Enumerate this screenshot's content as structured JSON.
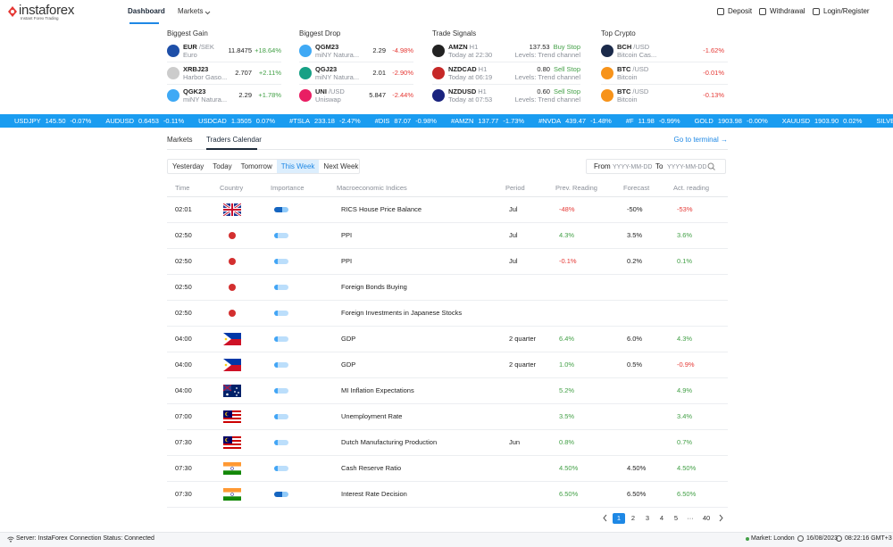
{
  "header": {
    "logo": "instaforex",
    "tagline": "Instant Forex Trading",
    "nav": [
      "Dashboard",
      "Markets"
    ],
    "actions": [
      "Deposit",
      "Withdrawal",
      "Login/Register"
    ]
  },
  "summary": [
    {
      "title": "Biggest Gain",
      "items": [
        {
          "symbol": "EUR",
          "quote": "/SEK",
          "name": "Euro",
          "price": "11.8475",
          "change": "+18.64%"
        },
        {
          "symbol": "XRBJ23",
          "name": "Harbor Gaso...",
          "price": "2.707",
          "change": "+2.11%"
        },
        {
          "symbol": "QGK23",
          "name": "miNY Natura...",
          "price": "2.29",
          "change": "+1.78%"
        }
      ]
    },
    {
      "title": "Biggest Drop",
      "items": [
        {
          "symbol": "QGM23",
          "name": "miNY Natura...",
          "price": "2.29",
          "change": "-4.98%"
        },
        {
          "symbol": "QGJ23",
          "name": "miNY Natura...",
          "price": "2.01",
          "change": "-2.90%"
        },
        {
          "symbol": "UNI",
          "quote": "/USD",
          "name": "Uniswap",
          "price": "5.847",
          "change": "-2.44%"
        }
      ]
    },
    {
      "title": "Trade Signals",
      "items": [
        {
          "symbol": "AMZN",
          "quote": "H1",
          "name": "Today at 22:30",
          "price": "137.53",
          "signal": "Buy Stop",
          "levels": "Levels: Trend channel"
        },
        {
          "symbol": "NZDCAD",
          "quote": "H1",
          "name": "Today at 06:19",
          "price": "0.80",
          "signal": "Sell Stop",
          "levels": "Levels: Trend channel"
        },
        {
          "symbol": "NZDUSD",
          "quote": "H1",
          "name": "Today at 07:53",
          "price": "0.60",
          "signal": "Sell Stop",
          "levels": "Levels: Trend channel"
        }
      ]
    },
    {
      "title": "Top Crypto",
      "items": [
        {
          "symbol": "BCH",
          "quote": "/USD",
          "name": "Bitcoin Cas...",
          "change": "-1.62%"
        },
        {
          "symbol": "BTC",
          "quote": "/USD",
          "name": "Bitcoin",
          "change": "-0.01%"
        },
        {
          "symbol": "BTC",
          "quote": "/USD",
          "name": "Bitcoin",
          "change": "-0.13%"
        }
      ]
    }
  ],
  "ticker": [
    {
      "symbol": "USDJPY",
      "price": "145.50",
      "change": "-0.07%"
    },
    {
      "symbol": "AUDUSD",
      "price": "0.6453",
      "change": "-0.11%"
    },
    {
      "symbol": "USDCAD",
      "price": "1.3505",
      "change": "0.07%"
    },
    {
      "symbol": "#TSLA",
      "price": "233.18",
      "change": "-2.47%"
    },
    {
      "symbol": "#DIS",
      "price": "87.07",
      "change": "-0.98%"
    },
    {
      "symbol": "#AMZN",
      "price": "137.77",
      "change": "-1.73%"
    },
    {
      "symbol": "#NVDA",
      "price": "439.47",
      "change": "-1.48%"
    },
    {
      "symbol": "#F",
      "price": "11.98",
      "change": "-0.99%"
    },
    {
      "symbol": "GOLD",
      "price": "1903.98",
      "change": "-0.00%"
    },
    {
      "symbol": "XAUUSD",
      "price": "1903.90",
      "change": "0.02%"
    },
    {
      "symbol": "SILVER"
    }
  ],
  "calendar": {
    "tabs": [
      "Markets",
      "Traders Calendar"
    ],
    "terminal_link": "Go to terminal →",
    "filters": [
      "Yesterday",
      "Today",
      "Tomorrow",
      "This Week",
      "Next Week"
    ],
    "from_label": "From",
    "to_label": "To",
    "date_placeholder": "YYYY-MM-DD",
    "columns": [
      "Time",
      "Country",
      "Importance",
      "Macroeconomic Indices",
      "Period",
      "Prev. Reading",
      "Forecast",
      "Act. reading"
    ],
    "rows": [
      {
        "time": "02:01",
        "indicator": "RICS House Price Balance",
        "period": "Jul",
        "previous": "-48%",
        "forecast": "-50%",
        "actual": "-53%"
      },
      {
        "time": "02:50",
        "indicator": "PPI",
        "period": "Jul",
        "previous": "4.3%",
        "forecast": "3.5%",
        "actual": "3.6%"
      },
      {
        "time": "02:50",
        "indicator": "PPI",
        "period": "Jul",
        "previous": "-0.1%",
        "forecast": "0.2%",
        "actual": "0.1%"
      },
      {
        "time": "02:50",
        "indicator": "Foreign Bonds Buying",
        "period": null,
        "previous": null,
        "forecast": null,
        "actual": null
      },
      {
        "time": "02:50",
        "indicator": "Foreign Investments in Japanese Stocks",
        "period": null,
        "previous": null,
        "forecast": null,
        "actual": null
      },
      {
        "time": "04:00",
        "indicator": "GDP",
        "period": "2 quarter",
        "previous": "6.4%",
        "forecast": "6.0%",
        "actual": "4.3%"
      },
      {
        "time": "04:00",
        "indicator": "GDP",
        "period": "2 quarter",
        "previous": "1.0%",
        "forecast": "0.5%",
        "actual": "-0.9%"
      },
      {
        "time": "04:00",
        "indicator": "MI Inflation Expectations",
        "period": null,
        "previous": "5.2%",
        "forecast": null,
        "actual": "4.9%"
      },
      {
        "time": "07:00",
        "indicator": "Unemployment Rate",
        "period": null,
        "previous": "3.5%",
        "forecast": null,
        "actual": "3.4%"
      },
      {
        "time": "07:30",
        "indicator": "Dutch Manufacturing Production",
        "period": "Jun",
        "previous": "0.8%",
        "forecast": null,
        "actual": "0.7%"
      },
      {
        "time": "07:30",
        "indicator": "Cash Reserve Ratio",
        "period": null,
        "previous": "4.50%",
        "forecast": "4.50%",
        "actual": "4.50%"
      },
      {
        "time": "07:30",
        "indicator": "Interest Rate Decision",
        "period": null,
        "previous": "6.50%",
        "forecast": "6.50%",
        "actual": "6.50%"
      }
    ],
    "pages": [
      1,
      2,
      3,
      4,
      5,
      "···",
      40
    ]
  },
  "footer": {
    "server": "Server: InstaForex",
    "status": "Connection Status: Connected",
    "market": "Market: London",
    "date": "16/08/2023",
    "time": "08:22:16 GMT+3"
  }
}
